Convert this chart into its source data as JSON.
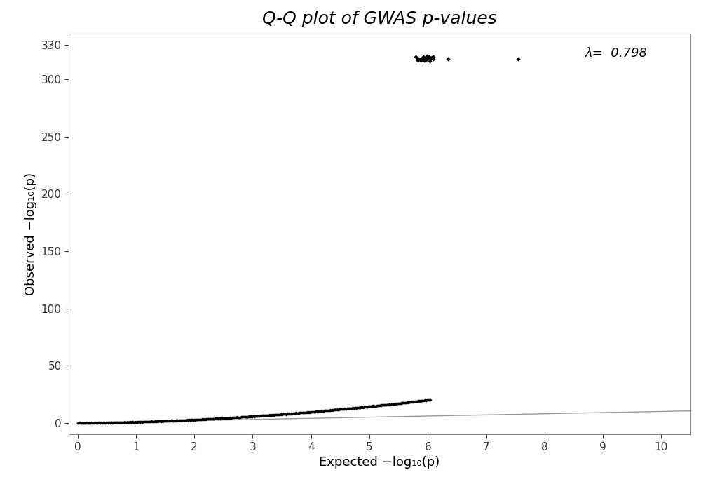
{
  "title": "Q-Q plot of GWAS p-values",
  "xlabel": "Expected −log₁₀(p)",
  "ylabel": "Observed −log₁₀(p)",
  "xlim": [
    -0.15,
    10.5
  ],
  "ylim": [
    -10,
    340
  ],
  "yticks": [
    0,
    50,
    100,
    150,
    200,
    250,
    300,
    330
  ],
  "xticks": [
    0,
    1,
    2,
    3,
    4,
    5,
    6,
    7,
    8,
    9,
    10
  ],
  "lambda_val": "0.798",
  "lambda_x": 8.7,
  "lambda_y": 320,
  "diagonal_color": "#999999",
  "point_color": "#000000",
  "point_marker": "D",
  "point_size": 4,
  "n_background_points": 800,
  "n_sig_points_cluster": 20,
  "sig_cluster_x_start": 5.8,
  "sig_cluster_x_end": 6.1,
  "sig_y": 318.0,
  "outlier_x1": 6.35,
  "outlier_y1": 318.0,
  "outlier_x2": 7.55,
  "outlier_y2": 318.0,
  "background_color": "#ffffff",
  "title_fontsize": 18,
  "axis_label_fontsize": 13,
  "tick_fontsize": 11
}
